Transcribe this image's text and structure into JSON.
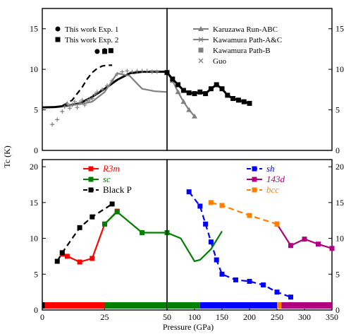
{
  "figure": {
    "ylabel": "Tc (K)",
    "xlabel": "Pressure (GPa)"
  },
  "chart_data": [
    {
      "panel": "top-left",
      "type": "scatter",
      "xlim": [
        0,
        50
      ],
      "ylim": [
        0,
        17.5
      ],
      "yticks": [
        0,
        5,
        10,
        15
      ],
      "legend_position": "top-left",
      "series": [
        {
          "name": "This work Exp. 1",
          "style": "marker-circle",
          "color": "#000000",
          "x": [
            22,
            25
          ],
          "y": [
            12.2,
            12.3
          ]
        },
        {
          "name": "This work Exp. 2",
          "style": "marker-square",
          "color": "#000000",
          "x": [
            25,
            27.5
          ],
          "y": [
            12.2,
            12.3
          ]
        },
        {
          "name": "black-dashed",
          "style": "dashed",
          "color": "#000000",
          "x": [
            8,
            12,
            16,
            18,
            20,
            22,
            24,
            26,
            28
          ],
          "y": [
            5.5,
            6.2,
            7.8,
            8.8,
            9.6,
            10.1,
            10.4,
            10.5,
            10.5
          ]
        },
        {
          "name": "black-solid",
          "style": "solid-thick",
          "color": "#000000",
          "x": [
            0,
            5,
            10,
            15,
            20,
            25,
            30,
            35,
            40,
            45,
            50
          ],
          "y": [
            5.3,
            5.35,
            5.5,
            5.8,
            6.6,
            7.6,
            8.7,
            9.5,
            9.7,
            9.7,
            9.7
          ]
        },
        {
          "name": "gray-curve",
          "style": "solid",
          "color": "#808080",
          "x": [
            10,
            15,
            20,
            25,
            30,
            35,
            40,
            45,
            50
          ],
          "y": [
            5.5,
            5.7,
            6.0,
            7.2,
            9.5,
            9.2,
            7.6,
            7.3,
            7.2
          ]
        },
        {
          "name": "gray-points",
          "style": "marker-cross",
          "color": "#808080",
          "x": [
            4,
            6,
            8,
            9,
            10,
            11,
            12,
            13,
            14,
            15,
            16,
            17,
            18,
            19,
            20,
            21,
            22,
            24,
            26,
            28,
            30,
            32,
            34,
            36,
            38,
            40,
            42,
            44,
            46
          ],
          "y": [
            3.2,
            3.8,
            4.8,
            5.4,
            5.8,
            5.2,
            5.6,
            6.0,
            5.3,
            5.9,
            6.2,
            5.6,
            6.1,
            6.3,
            6.4,
            6.9,
            7.2,
            7.5,
            8.0,
            8.6,
            9.4,
            9.7,
            9.8,
            9.7,
            9.8,
            9.8,
            9.8,
            9.7,
            9.7
          ]
        }
      ]
    },
    {
      "panel": "top-right",
      "type": "line",
      "xlim": [
        50,
        350
      ],
      "ylim": [
        0,
        17.5
      ],
      "yticks": [
        0,
        5,
        10,
        15
      ],
      "legend_position": "top-right",
      "series": [
        {
          "name": "Karuzawa Run-ABC",
          "style": "line-triangle",
          "color": "#808080",
          "x": [
            50,
            60,
            70,
            80,
            90,
            100
          ],
          "y": [
            9.6,
            8.6,
            7.2,
            6.0,
            5.0,
            4.2
          ]
        },
        {
          "name": "Kawamura Path-A&C",
          "style": "line-x",
          "color": "#808080",
          "x": [],
          "y": []
        },
        {
          "name": "Kawamura Path-B",
          "style": "marker-square",
          "color": "#808080",
          "x": [],
          "y": []
        },
        {
          "name": "Guo",
          "style": "marker-plus",
          "color": "#808080",
          "x": [],
          "y": []
        },
        {
          "name": "black-thick",
          "style": "solid-thick-square",
          "color": "#000000",
          "x": [
            50,
            60,
            70,
            80,
            90,
            100,
            110,
            120,
            130,
            140,
            150,
            160,
            170,
            180,
            190,
            200
          ],
          "y": [
            9.6,
            8.8,
            8.1,
            7.4,
            7.1,
            7.0,
            7.2,
            7.0,
            7.6,
            8.1,
            7.6,
            6.8,
            6.4,
            6.2,
            6.0,
            5.8
          ]
        }
      ]
    },
    {
      "panel": "bottom-left",
      "type": "line",
      "xlim": [
        0,
        50
      ],
      "ylim": [
        0,
        21
      ],
      "yticks": [
        0,
        5,
        10,
        15,
        20
      ],
      "xticks": [
        0,
        25,
        50
      ],
      "legend_position": "top-right",
      "series": [
        {
          "name": "R3m",
          "style": "line-square",
          "color": "#ff0000",
          "x": [
            8,
            10,
            15,
            20,
            25,
            30
          ],
          "y": [
            7.8,
            7.5,
            6.7,
            7.2,
            12.0,
            13.8
          ]
        },
        {
          "name": "sc",
          "style": "line-square",
          "color": "#008000",
          "x": [
            25,
            30,
            40,
            50
          ],
          "y": [
            12.0,
            13.7,
            10.8,
            10.8
          ]
        },
        {
          "name": "Black P",
          "style": "dashed-square",
          "color": "#000000",
          "x": [
            6,
            8,
            15,
            20,
            28
          ],
          "y": [
            6.8,
            8.0,
            11.5,
            13.0,
            14.8
          ]
        }
      ],
      "phase_bar": [
        {
          "from": 0,
          "to": 1,
          "color": "#000000"
        },
        {
          "from": 1,
          "to": 25,
          "color": "#ff0000"
        },
        {
          "from": 25,
          "to": 50,
          "color": "#008000"
        }
      ]
    },
    {
      "panel": "bottom-right",
      "type": "line",
      "xlim": [
        50,
        350
      ],
      "ylim": [
        0,
        21
      ],
      "yticks": [
        0,
        5,
        10,
        15,
        20
      ],
      "xticks": [
        50,
        100,
        150,
        200,
        250,
        300,
        350
      ],
      "legend_position": "top-right",
      "series": [
        {
          "name": "sh",
          "style": "dashed-square",
          "color": "#0000ff",
          "x": [
            90,
            110,
            120,
            130,
            140,
            150,
            175,
            200,
            225,
            250,
            275
          ],
          "y": [
            16.5,
            14.5,
            12.0,
            9.5,
            7.0,
            5.0,
            4.2,
            4.0,
            3.5,
            2.5,
            1.8
          ]
        },
        {
          "name": "143d",
          "style": "line-square",
          "color": "#b00080",
          "x": [
            250,
            275,
            300,
            325,
            350
          ],
          "y": [
            12.0,
            9.0,
            9.9,
            9.2,
            8.6
          ]
        },
        {
          "name": "bcc",
          "style": "dashed-square",
          "color": "#ff7f00",
          "x": [
            130,
            150,
            200,
            250
          ],
          "y": [
            15.0,
            14.6,
            13.2,
            12.0
          ]
        },
        {
          "name": "sc-green",
          "style": "line",
          "color": "#008000",
          "x": [
            50,
            75,
            100,
            110,
            130,
            150
          ],
          "y": [
            10.8,
            10.0,
            6.8,
            7.0,
            8.5,
            11.0
          ]
        }
      ],
      "phase_bar": [
        {
          "from": 50,
          "to": 110,
          "color": "#008000"
        },
        {
          "from": 110,
          "to": 250,
          "color": "#0000ff"
        },
        {
          "from": 250,
          "to": 258,
          "color": "#ff7f00"
        },
        {
          "from": 258,
          "to": 350,
          "color": "#b00080"
        }
      ]
    }
  ]
}
